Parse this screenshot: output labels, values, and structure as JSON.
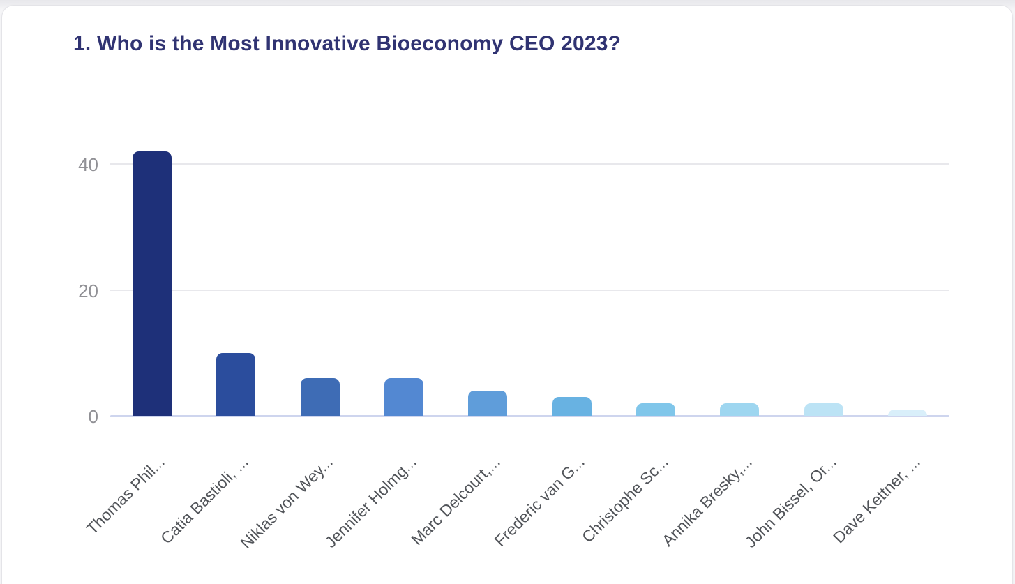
{
  "question": {
    "title": "1. Who is the Most Innovative Bioeconomy CEO 2023?"
  },
  "chart_data": {
    "type": "bar",
    "title": "1. Who is the Most Innovative Bioeconomy CEO 2023?",
    "categories": [
      "Thomas Phil...",
      "Catia Bastioli, ...",
      "Niklas von Wey...",
      "Jennifer Holmg...",
      "Marc Delcourt,...",
      "Frederic van G...",
      "Christophe Sc...",
      "Annika Bresky,...",
      "John Bissel, Or...",
      "Dave Kettner, ..."
    ],
    "values": [
      42,
      10,
      6,
      6,
      4,
      3,
      2,
      2,
      2,
      1
    ],
    "bar_colors": [
      "#1e3079",
      "#2b4d9d",
      "#3e6cb5",
      "#5388d2",
      "#5f9dda",
      "#68b2e2",
      "#80c6ea",
      "#9ed6f0",
      "#bce3f5",
      "#d9effa"
    ],
    "y_ticks": [
      0,
      20,
      40
    ],
    "ylim": [
      0,
      44
    ],
    "xlabel": "",
    "ylabel": "",
    "grid": true,
    "legend": "none"
  },
  "styles": {
    "title_color": "#303372",
    "tick_label_color": "#909095",
    "category_label_color": "#515459",
    "gridline_color": "#e8e8ec",
    "axis_line_color": "#ced5ee",
    "card_background": "#ffffff",
    "card_border": "#e4e4e8"
  }
}
